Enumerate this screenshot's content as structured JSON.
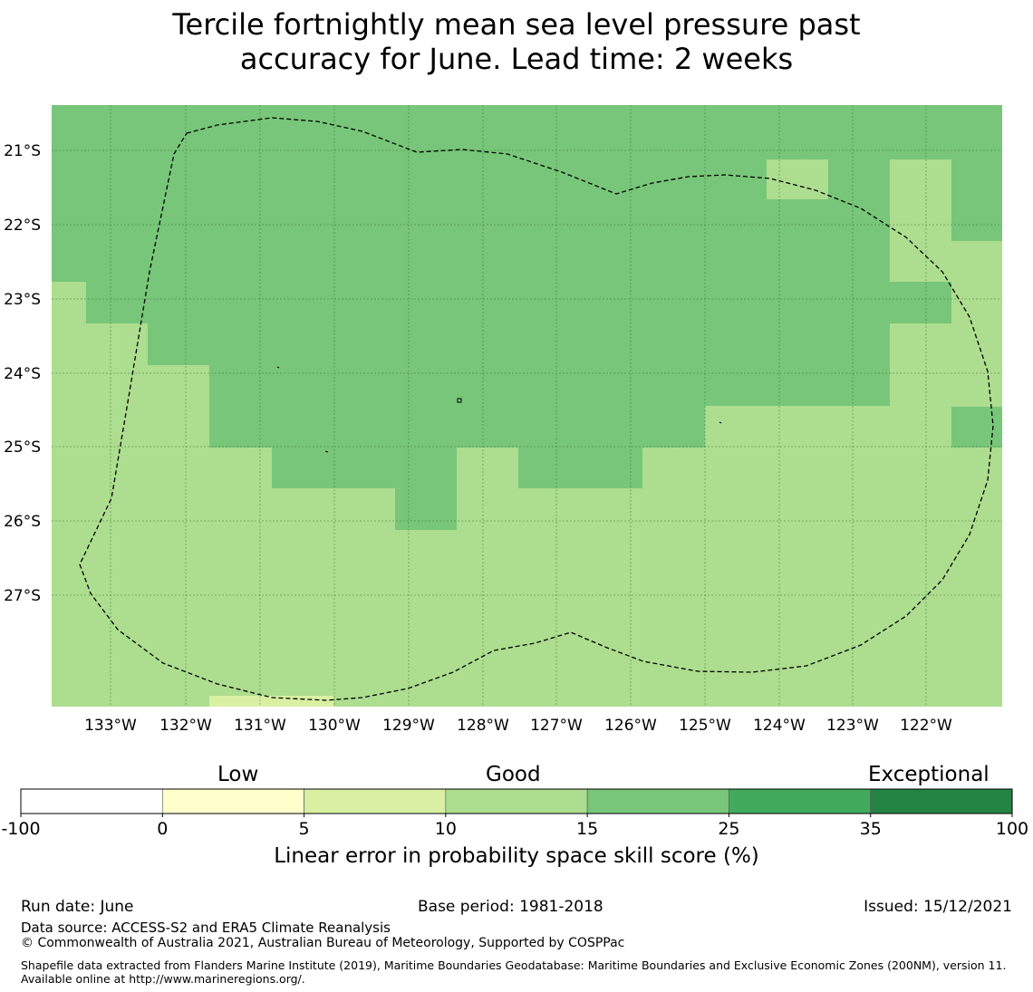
{
  "title_line1": "Tercile fortnightly mean sea level pressure past",
  "title_line2": "accuracy for June. Lead time: 2 weeks",
  "colors": {
    "skill_15_25": "#78c679",
    "skill_10_15": "#addd8e",
    "skill_5_10": "#d9f0a3"
  },
  "map": {
    "lon_ticks": [
      "133°W",
      "132°W",
      "131°W",
      "130°W",
      "129°W",
      "128°W",
      "127°W",
      "126°W",
      "125°W",
      "124°W",
      "123°W",
      "122°W"
    ],
    "lat_ticks": [
      "21°S",
      "22°S",
      "23°S",
      "24°S",
      "25°S",
      "26°S",
      "27°S"
    ]
  },
  "legend": {
    "labels": [
      "Low",
      "Good",
      "Exceptional"
    ],
    "colors": [
      "#ffffff",
      "#ffffcc",
      "#d9f0a3",
      "#addd8e",
      "#78c679",
      "#41ab5d",
      "#238443"
    ],
    "ticks": [
      "-100",
      "0",
      "5",
      "10",
      "15",
      "25",
      "35",
      "100"
    ],
    "title": "Linear error in probability space skill score (%)"
  },
  "footer": {
    "run_date": "Run date: June",
    "base_period": "Base period: 1981-2018",
    "issued": "Issued: 15/12/2021",
    "data_source": "Data source: ACCESS-S2 and ERA5 Climate Reanalysis",
    "copyright": "© Commonwealth of Australia 2021, Australian Bureau of Meteorology, Supported by COSPPac",
    "shapefile": "Shapefile data extracted from Flanders Marine Institute (2019), Maritime Boundaries Geodatabase: Maritime Boundaries and Exclusive Economic Zones (200NM), version 11. Available online at http://www.marineregions.org/."
  }
}
